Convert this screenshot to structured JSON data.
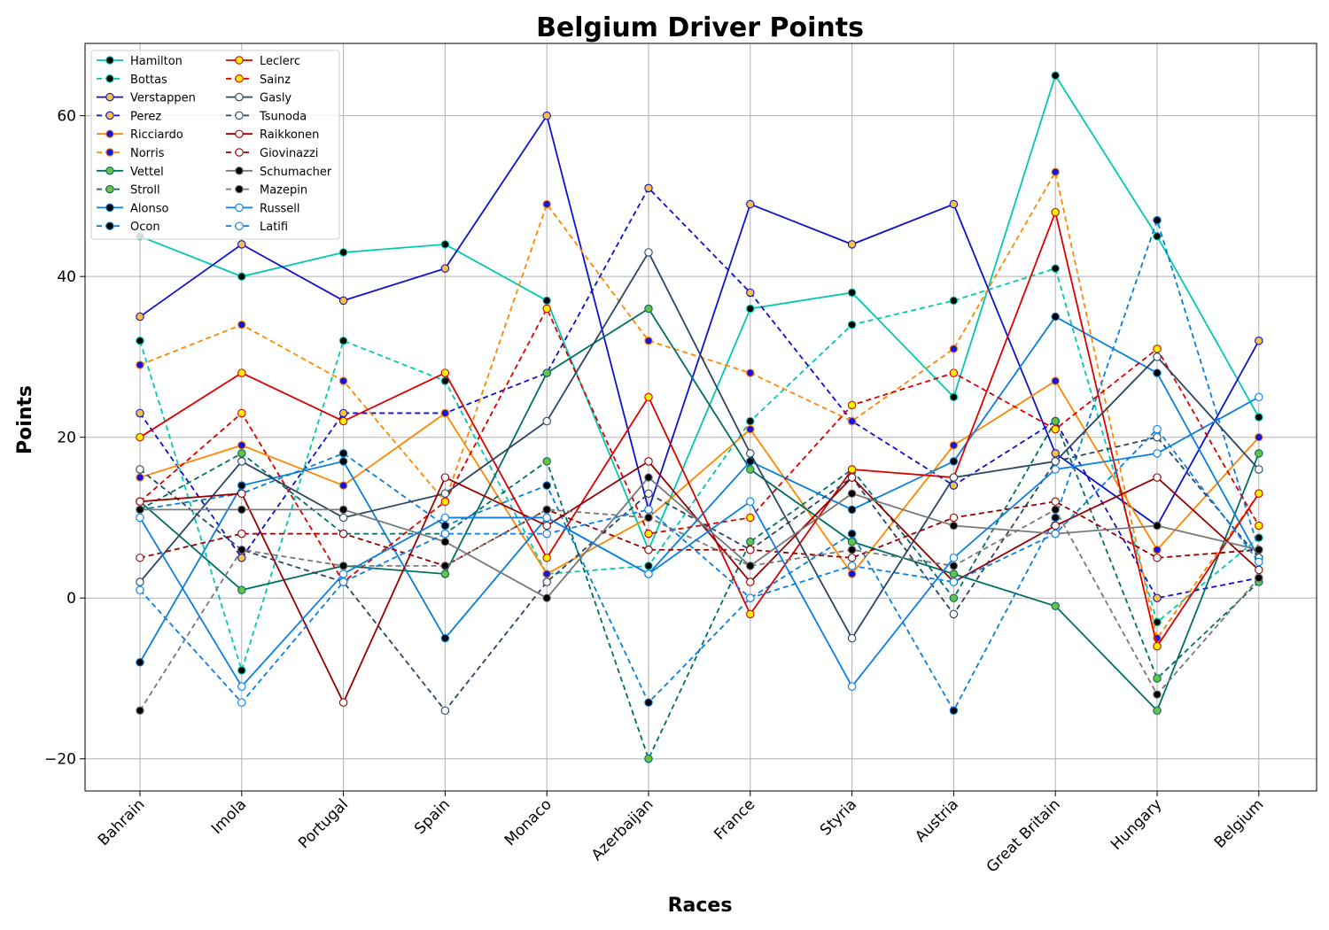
{
  "chart_data": {
    "type": "line",
    "title": "Belgium Driver Points",
    "xlabel": "Races",
    "ylabel": "Points",
    "categories": [
      "Bahrain",
      "Imola",
      "Portugal",
      "Spain",
      "Monaco",
      "Azerbaijan",
      "France",
      "Styria",
      "Austria",
      "Great Britain",
      "Hungary",
      "Belgium"
    ],
    "ylim": [
      -24,
      69
    ],
    "yticks": [
      -20,
      0,
      20,
      40,
      60
    ],
    "grid": true,
    "legend_position": "top-left",
    "legend_columns": 2,
    "series": [
      {
        "name": "Hamilton",
        "color": "#00c9b0",
        "dash": "solid",
        "marker_fill": "#000000",
        "values": [
          45,
          40,
          43,
          44,
          37,
          6,
          36,
          38,
          25,
          65,
          45,
          22.5
        ]
      },
      {
        "name": "Bottas",
        "color": "#00c9b0",
        "dash": "dashed",
        "marker_fill": "#000000",
        "values": [
          32,
          -9,
          32,
          27,
          3,
          4,
          22,
          34,
          37,
          41,
          -3,
          7.5
        ]
      },
      {
        "name": "Verstappen",
        "color": "#1010d0",
        "dash": "solid",
        "marker_fill": "#f5c242",
        "values": [
          35,
          44,
          37,
          41,
          60,
          11,
          49,
          44,
          49,
          18,
          9,
          32
        ]
      },
      {
        "name": "Perez",
        "color": "#1010d0",
        "dash": "dashed",
        "marker_fill": "#f5c242",
        "values": [
          23,
          5,
          23,
          23,
          28,
          51,
          38,
          22,
          14,
          22,
          0,
          2.5
        ]
      },
      {
        "name": "Ricciardo",
        "color": "#ff8700",
        "dash": "solid",
        "marker_fill": "#1515e0",
        "values": [
          15,
          19,
          14,
          23,
          3,
          10,
          21,
          3,
          19,
          27,
          6,
          20
        ]
      },
      {
        "name": "Norris",
        "color": "#ff8700",
        "dash": "dashed",
        "marker_fill": "#1515e0",
        "values": [
          29,
          34,
          27,
          12,
          49,
          32,
          28,
          22,
          31,
          53,
          -5,
          13
        ]
      },
      {
        "name": "Vettel",
        "color": "#006f62",
        "dash": "solid",
        "marker_fill": "#6abf45",
        "values": [
          12,
          1,
          4,
          3,
          28,
          36,
          16,
          7,
          3,
          -1,
          -14,
          18
        ]
      },
      {
        "name": "Stroll",
        "color": "#006f62",
        "dash": "dashed",
        "marker_fill": "#6abf45",
        "values": [
          11,
          18,
          8,
          8,
          17,
          -20,
          7,
          16,
          0,
          22,
          -10,
          2
        ]
      },
      {
        "name": "Alonso",
        "color": "#0a7fd8",
        "dash": "solid",
        "marker_fill": "#000000",
        "values": [
          -8,
          14,
          17,
          -5,
          10,
          3,
          17,
          11,
          17,
          35,
          28,
          5
        ]
      },
      {
        "name": "Ocon",
        "color": "#0a7fd8",
        "dash": "dashed",
        "marker_fill": "#000000",
        "values": [
          11,
          13,
          18,
          9,
          14,
          -13,
          0,
          8,
          -14,
          10,
          47,
          6
        ]
      },
      {
        "name": "Leclerc",
        "color": "#dc0000",
        "dash": "solid",
        "marker_fill": "#fff200",
        "values": [
          20,
          28,
          22,
          28,
          5,
          25,
          -2,
          16,
          15,
          48,
          -6,
          13
        ]
      },
      {
        "name": "Sainz",
        "color": "#dc0000",
        "dash": "dashed",
        "marker_fill": "#fff200",
        "values": [
          12,
          23,
          2,
          12,
          36,
          8,
          10,
          24,
          28,
          21,
          31,
          9
        ]
      },
      {
        "name": "Gasly",
        "color": "#2b4562",
        "dash": "solid",
        "marker_fill": "#ffffff",
        "values": [
          2,
          17,
          10,
          13,
          22,
          43,
          18,
          -5,
          15,
          17,
          30,
          16
        ]
      },
      {
        "name": "Tsunoda",
        "color": "#2b4562",
        "dash": "dashed",
        "marker_fill": "#ffffff",
        "values": [
          16,
          6,
          2,
          -14,
          2,
          13,
          6,
          15,
          -2,
          17,
          20,
          5
        ]
      },
      {
        "name": "Raikkonen",
        "color": "#960000",
        "dash": "solid",
        "marker_fill": "#ffffff",
        "values": [
          12,
          13,
          -13,
          15,
          9,
          17,
          2,
          15,
          2,
          9,
          15,
          3.5
        ]
      },
      {
        "name": "Giovinazzi",
        "color": "#960000",
        "dash": "dashed",
        "marker_fill": "#ffffff",
        "values": [
          5,
          8,
          8,
          4,
          11,
          6,
          6,
          5,
          10,
          12,
          5,
          6
        ]
      },
      {
        "name": "Schumacher",
        "color": "#787878",
        "dash": "solid",
        "marker_fill": "#000000",
        "values": [
          11,
          11,
          11,
          7,
          0,
          15,
          4,
          13,
          9,
          8,
          9,
          6
        ]
      },
      {
        "name": "Mazepin",
        "color": "#787878",
        "dash": "dashed",
        "marker_fill": "#000000",
        "values": [
          -14,
          6,
          4,
          4,
          11,
          10,
          4,
          6,
          4,
          11,
          -12,
          2.5
        ]
      },
      {
        "name": "Russell",
        "color": "#0a7fe8",
        "dash": "solid",
        "marker_fill": "#ffffff",
        "values": [
          10,
          -11,
          3,
          10,
          10,
          3,
          12,
          -11,
          5,
          16,
          18,
          25
        ]
      },
      {
        "name": "Latifi",
        "color": "#0a7fe8",
        "dash": "dashed",
        "marker_fill": "#ffffff",
        "values": [
          1,
          -13,
          2,
          8,
          8,
          11,
          0,
          4,
          2,
          8,
          21,
          4.5
        ]
      }
    ]
  }
}
